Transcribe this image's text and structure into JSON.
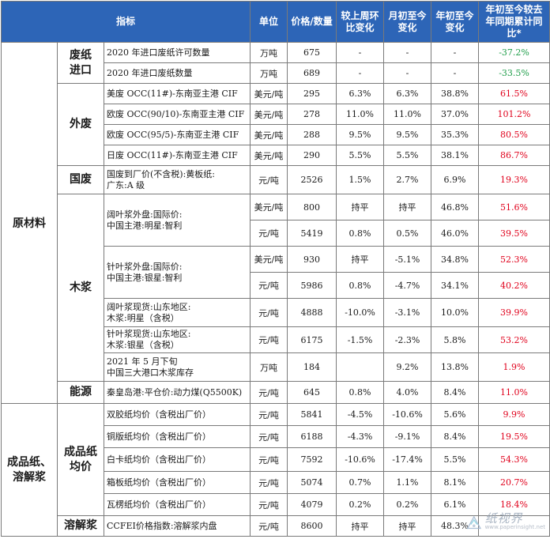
{
  "headers": {
    "indicator": "指标",
    "unit": "单位",
    "price": "价格/数量",
    "wow": "较上周环比变化",
    "mtd": "月初至今变化",
    "ytd": "年初至今变化",
    "yoy": "年初至今较去年同期累计同比*"
  },
  "categories": {
    "raw": "原材料",
    "finished": "成品纸、溶解浆"
  },
  "subcategories": {
    "waste_import": "废纸进口",
    "foreign_waste": "外废",
    "domestic_waste": "国废",
    "wood_pulp": "木浆",
    "energy": "能源",
    "finished_paper": "成品纸均价",
    "dissolving": "溶解浆"
  },
  "rows": [
    {
      "name": "2020 年进口废纸许可数量",
      "unit": "万吨",
      "price": "675",
      "wow": "-",
      "mtd": "-",
      "ytd": "-",
      "yoy": "-37.2%",
      "yoy_dir": "down"
    },
    {
      "name": "2020 年进口废纸数量",
      "unit": "万吨",
      "price": "689",
      "wow": "-",
      "mtd": "-",
      "ytd": "-",
      "yoy": "-33.5%",
      "yoy_dir": "down"
    },
    {
      "name": "美废 OCC(11#)-东南亚主港 CIF",
      "unit": "美元/吨",
      "price": "295",
      "wow": "6.3%",
      "mtd": "6.3%",
      "ytd": "38.8%",
      "yoy": "61.5%",
      "yoy_dir": "up"
    },
    {
      "name": "欧废 OCC(90/10)-东南亚主港 CIF",
      "unit": "美元/吨",
      "price": "278",
      "wow": "11.0%",
      "mtd": "11.0%",
      "ytd": "37.0%",
      "yoy": "101.2%",
      "yoy_dir": "up"
    },
    {
      "name": "欧废 OCC(95/5)-东南亚主港 CIF",
      "unit": "美元/吨",
      "price": "288",
      "wow": "9.5%",
      "mtd": "9.5%",
      "ytd": "35.3%",
      "yoy": "80.5%",
      "yoy_dir": "up"
    },
    {
      "name": "日废 OCC(11#)-东南亚主港 CIF",
      "unit": "美元/吨",
      "price": "290",
      "wow": "5.5%",
      "mtd": "5.5%",
      "ytd": "38.1%",
      "yoy": "86.7%",
      "yoy_dir": "up"
    },
    {
      "name": "国废到厂价(不含税):黄板纸:广东:A 级",
      "unit": "元/吨",
      "price": "2526",
      "wow": "1.5%",
      "mtd": "2.7%",
      "ytd": "6.9%",
      "yoy": "19.3%",
      "yoy_dir": "up"
    },
    {
      "name": "阔叶浆外盘:国际价:中国主港:明星:智利",
      "unit": "美元/吨",
      "price": "800",
      "wow": "持平",
      "mtd": "持平",
      "ytd": "46.8%",
      "yoy": "51.6%",
      "yoy_dir": "up"
    },
    {
      "name": "",
      "unit": "元/吨",
      "price": "5419",
      "wow": "0.8%",
      "mtd": "0.5%",
      "ytd": "46.0%",
      "yoy": "39.5%",
      "yoy_dir": "up"
    },
    {
      "name": "针叶浆外盘:国际价:中国主港:银星:智利",
      "unit": "美元/吨",
      "price": "930",
      "wow": "持平",
      "mtd": "-5.1%",
      "ytd": "34.8%",
      "yoy": "52.3%",
      "yoy_dir": "up"
    },
    {
      "name": "",
      "unit": "元/吨",
      "price": "5986",
      "wow": "0.8%",
      "mtd": "-4.7%",
      "ytd": "34.1%",
      "yoy": "40.2%",
      "yoy_dir": "up"
    },
    {
      "name": "阔叶浆现货:山东地区:木浆:明星（含税）",
      "unit": "元/吨",
      "price": "4888",
      "wow": "-10.0%",
      "mtd": "-3.1%",
      "ytd": "10.0%",
      "yoy": "39.9%",
      "yoy_dir": "up"
    },
    {
      "name": "针叶浆现货:山东地区:木浆:银星（含税）",
      "unit": "元/吨",
      "price": "6175",
      "wow": "-1.5%",
      "mtd": "-2.3%",
      "ytd": "5.8%",
      "yoy": "53.2%",
      "yoy_dir": "up"
    },
    {
      "name": "2021 年 5 月下旬中国三大港口木浆库存",
      "unit": "万吨",
      "price": "184",
      "wow": "",
      "mtd": "9.2%",
      "ytd": "13.8%",
      "yoy": "1.9%",
      "yoy_dir": "up"
    },
    {
      "name": "秦皇岛港:平仓价:动力煤(Q5500K)",
      "unit": "元/吨",
      "price": "645",
      "wow": "0.8%",
      "mtd": "4.0%",
      "ytd": "8.4%",
      "yoy": "11.0%",
      "yoy_dir": "up"
    },
    {
      "name": "双胶纸均价（含税出厂价）",
      "unit": "元/吨",
      "price": "5841",
      "wow": "-4.5%",
      "mtd": "-10.6%",
      "ytd": "5.6%",
      "yoy": "9.9%",
      "yoy_dir": "up"
    },
    {
      "name": "铜版纸均价（含税出厂价）",
      "unit": "元/吨",
      "price": "6188",
      "wow": "-4.3%",
      "mtd": "-9.1%",
      "ytd": "8.4%",
      "yoy": "19.5%",
      "yoy_dir": "up"
    },
    {
      "name": "白卡纸均价（含税出厂价）",
      "unit": "元/吨",
      "price": "7592",
      "wow": "-10.6%",
      "mtd": "-17.4%",
      "ytd": "5.5%",
      "yoy": "54.3%",
      "yoy_dir": "up"
    },
    {
      "name": "箱板纸均价（含税出厂价）",
      "unit": "元/吨",
      "price": "5074",
      "wow": "0.7%",
      "mtd": "1.1%",
      "ytd": "8.1%",
      "yoy": "20.7%",
      "yoy_dir": "up"
    },
    {
      "name": "瓦楞纸均价（含税出厂价）",
      "unit": "元/吨",
      "price": "4079",
      "wow": "0.2%",
      "mtd": "0.2%",
      "ytd": "6.1%",
      "yoy": "18.4%",
      "yoy_dir": "up"
    },
    {
      "name": "CCFEI价格指数:溶解浆内盘",
      "unit": "元/吨",
      "price": "8600",
      "wow": "持平",
      "mtd": "持平",
      "ytd": "48.3%",
      "yoy": "",
      "yoy_dir": "up"
    }
  ],
  "name_lines": {
    "r6": [
      "国废到厂价(不含税):黄板纸:",
      "广东:A 级"
    ],
    "r7": [
      "阔叶浆外盘:国际价:",
      "中国主港:明星:智利"
    ],
    "r9": [
      "针叶浆外盘:国际价:",
      "中国主港:银星:智利"
    ],
    "r11": [
      "阔叶浆现货:山东地区:",
      "木浆:明星（含税）"
    ],
    "r12": [
      "针叶浆现货:山东地区:",
      "木浆:银星（含税）"
    ],
    "r13": [
      "2021 年 5 月下旬",
      "中国三大港口木浆库存"
    ]
  },
  "watermark": {
    "text": "纸视界",
    "url": "www.paperinsight.net"
  },
  "colors": {
    "header_bg": "#2d65b7",
    "up": "#e0001b",
    "down": "#1f9e4a"
  }
}
